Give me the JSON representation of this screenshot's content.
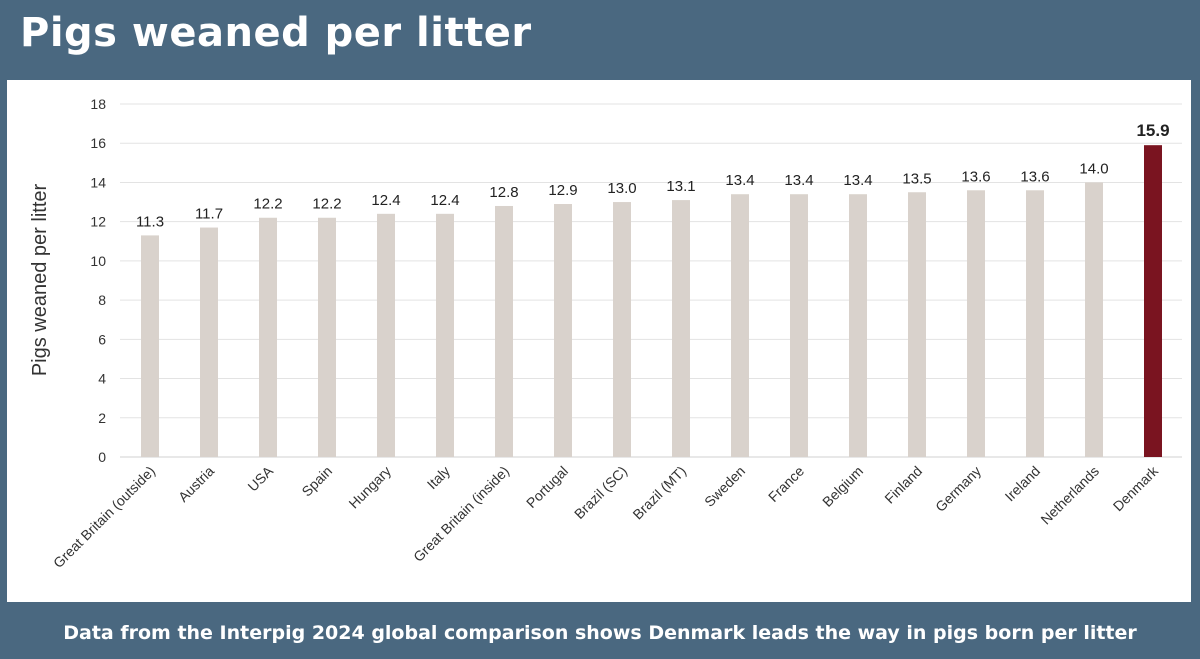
{
  "title": "Pigs weaned per litter",
  "caption": "Data from the Interpig 2024 global comparison shows Denmark leads the way in pigs born per litter",
  "chart_data": {
    "type": "bar",
    "title": "Pigs weaned per litter",
    "xlabel": "",
    "ylabel": "Pigs weaned per litter",
    "ylim": [
      0,
      18
    ],
    "yticks": [
      0,
      2,
      4,
      6,
      8,
      10,
      12,
      14,
      16,
      18
    ],
    "grid": true,
    "categories": [
      "Great Britain (outside)",
      "Austria",
      "USA",
      "Spain",
      "Hungary",
      "Italy",
      "Great Britain (inside)",
      "Portugal",
      "Brazil (SC)",
      "Brazil (MT)",
      "Sweden",
      "France",
      "Belgium",
      "Finland",
      "Germany",
      "Ireland",
      "Netherlands",
      "Denmark"
    ],
    "values": [
      11.3,
      11.7,
      12.2,
      12.2,
      12.4,
      12.4,
      12.8,
      12.9,
      13.0,
      13.1,
      13.4,
      13.4,
      13.4,
      13.5,
      13.6,
      13.6,
      14.0,
      15.9
    ],
    "data_labels": [
      "11.3",
      "11.7",
      "12.2",
      "12.2",
      "12.4",
      "12.4",
      "12.8",
      "12.9",
      "13.0",
      "13.1",
      "13.4",
      "13.4",
      "13.4",
      "13.5",
      "13.6",
      "13.6",
      "14.0",
      "15.9"
    ],
    "highlight": "Denmark",
    "colors": {
      "bar": "#d9d2cc",
      "highlight": "#7a1420",
      "grid": "#e3e3e3"
    }
  }
}
